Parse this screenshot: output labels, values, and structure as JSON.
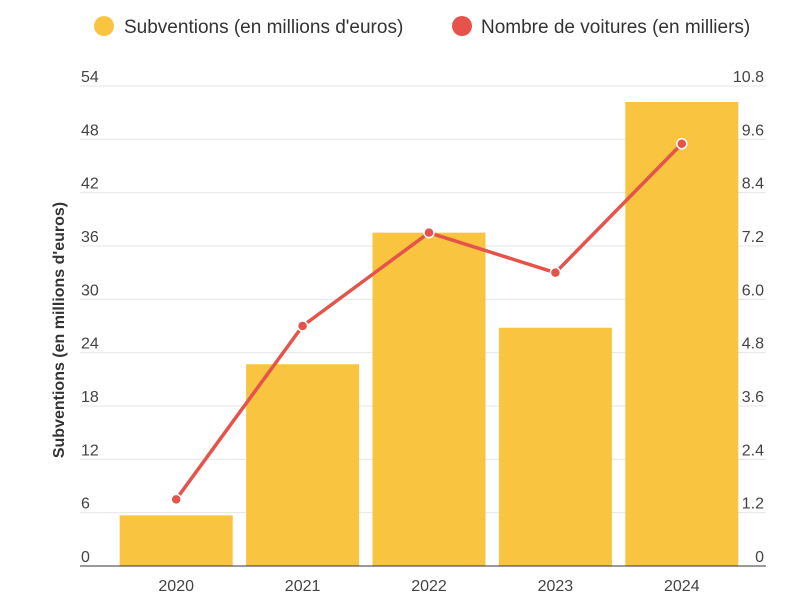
{
  "chart_data": {
    "type": "bar",
    "categories": [
      "2020",
      "2021",
      "2022",
      "2023",
      "2024"
    ],
    "series": [
      {
        "name": "Subventions (en millions d'euros)",
        "type": "bar",
        "axis": "left",
        "color": "#F9C440",
        "values": [
          5.7,
          22.7,
          37.5,
          26.8,
          52.2
        ]
      },
      {
        "name": "Nombre de voitures (en milliers)",
        "type": "line",
        "axis": "right",
        "color": "#E5534B",
        "values": [
          1.5,
          5.4,
          7.5,
          6.6,
          9.5
        ]
      }
    ],
    "ylabel": "Subventions (en millions d'euros)",
    "y_left": {
      "range": [
        0,
        54
      ],
      "ticks": [
        "0",
        "6",
        "12",
        "18",
        "24",
        "30",
        "36",
        "42",
        "48",
        "54"
      ]
    },
    "y_right": {
      "range": [
        0,
        10.8
      ],
      "ticks": [
        "0",
        "1.2",
        "2.4",
        "3.6",
        "4.8",
        "6.0",
        "7.2",
        "8.4",
        "9.6",
        "10.8"
      ]
    },
    "grid": true,
    "legend_position": "top"
  }
}
